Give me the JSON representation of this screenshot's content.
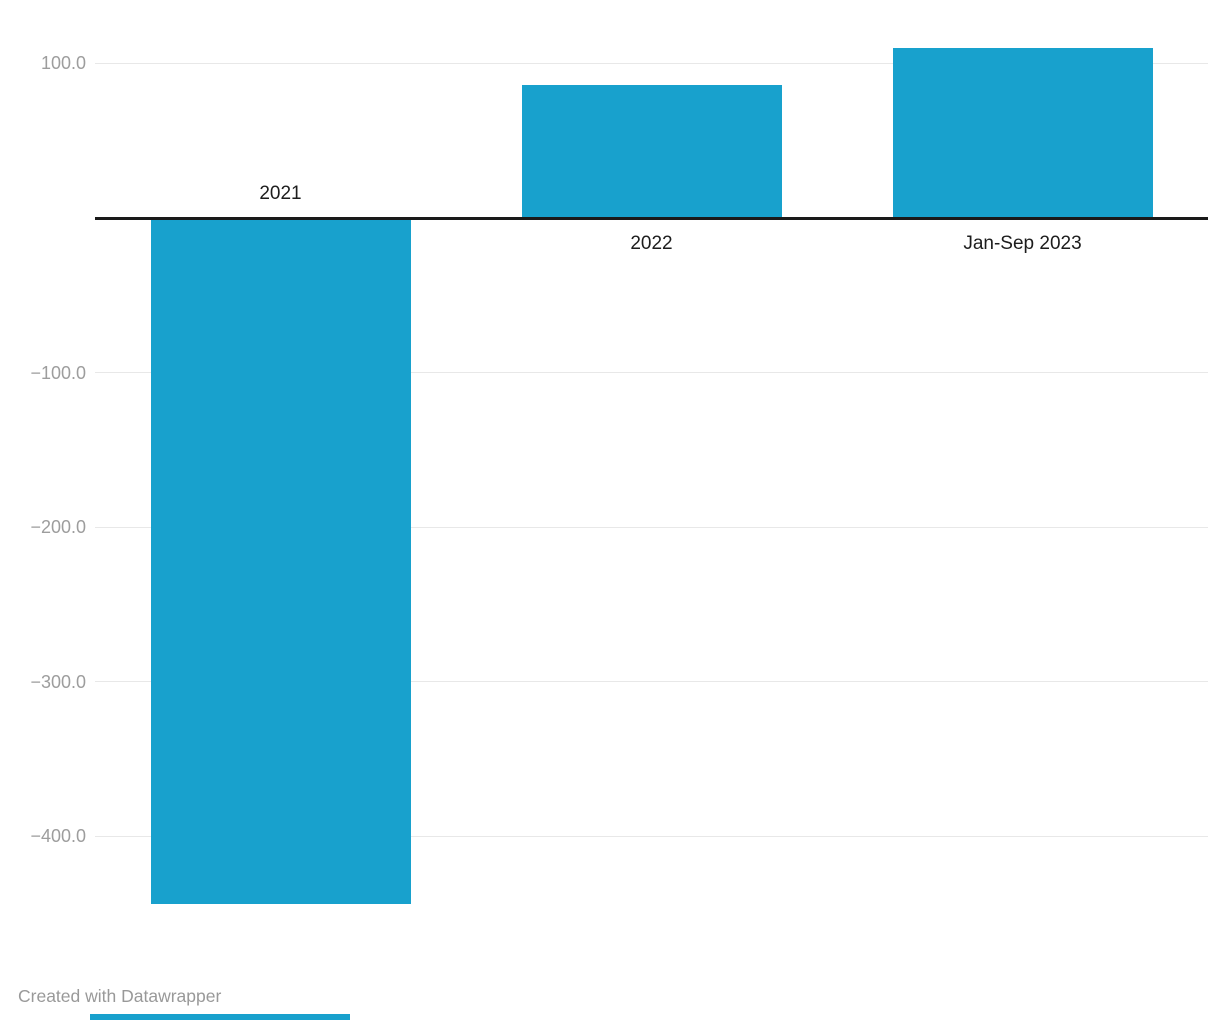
{
  "chart_data": {
    "type": "bar",
    "orientation": "column",
    "title": "",
    "xlabel": "",
    "ylabel": "",
    "categories": [
      "2021",
      "2022",
      "Jan-Sep 2023"
    ],
    "values": [
      -444,
      86,
      110
    ],
    "y_ticks": [
      {
        "value": 100,
        "label": "100.0"
      },
      {
        "value": -100,
        "label": "−100.0"
      },
      {
        "value": -200,
        "label": "−200.0"
      },
      {
        "value": -300,
        "label": "−300.0"
      },
      {
        "value": -400,
        "label": "−400.0"
      }
    ],
    "ylim": [
      -480,
      140
    ],
    "baseline_value": 0,
    "grid": "horizontal",
    "legend": "none"
  },
  "colors": {
    "bar": "#18a1cd",
    "grid": "#e8e8e8",
    "baseline": "#1a1a1a",
    "tick_label": "#9d9d9d",
    "category_label": "#1d1d1d",
    "footer": "#999999"
  },
  "footer": {
    "credit": "Created with Datawrapper"
  }
}
